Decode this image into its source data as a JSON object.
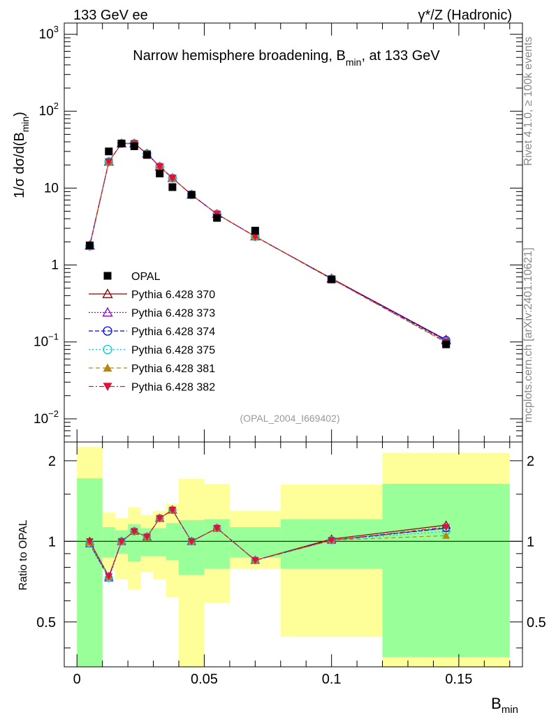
{
  "header": {
    "left": "133 GeV ee",
    "right": "γ*/Z (Hadronic)"
  },
  "side_labels": {
    "rivet": "Rivet 4.1.0, ≥ 100k events",
    "mcplots": "mcplots.cern.ch [arXiv:2401.10621]"
  },
  "colors": {
    "opal": "#000000",
    "s370": "#8b0000",
    "s373": "#9400d3",
    "s374": "#0000ff",
    "s375": "#00ced1",
    "s381": "#b8860b",
    "s382": "#dc143c",
    "band_inner": "#99ff99",
    "band_outer": "#ffff99"
  },
  "chart_data": [
    {
      "type": "line",
      "panel": "main",
      "title": "Narrow hemisphere broadening, B",
      "title_sub": "min",
      "title_suffix": ", at 133 GeV",
      "ylabel_main": "1/σ  dσ/d(B",
      "ylabel_sub": "min",
      "ylabel_close": ")",
      "yscale": "log",
      "ylim": [
        0.005,
        1400
      ],
      "xlim": [
        -0.005,
        0.175
      ],
      "yticks": [
        {
          "v": 0.01,
          "base": "10",
          "exp": "−2"
        },
        {
          "v": 0.1,
          "base": "10",
          "exp": "−1"
        },
        {
          "v": 1,
          "base": "1",
          "exp": ""
        },
        {
          "v": 10,
          "base": "10",
          "exp": ""
        },
        {
          "v": 100,
          "base": "10",
          "exp": "2"
        },
        {
          "v": 1000,
          "base": "10",
          "exp": "3"
        }
      ],
      "annotation": "(OPAL_2004_I669402)",
      "legend_position": "middle-left",
      "x": [
        0.005,
        0.0125,
        0.0175,
        0.0225,
        0.0275,
        0.0325,
        0.0375,
        0.045,
        0.055,
        0.07,
        0.1,
        0.145
      ],
      "opal": {
        "name": "OPAL",
        "values": [
          1.8,
          30,
          38,
          35,
          27,
          15.5,
          10.3,
          8.2,
          4.1,
          2.8,
          0.65,
          0.093
        ]
      },
      "series": [
        {
          "key": "s370",
          "name": "Pythia 6.428 370",
          "marker": "triangle-open",
          "dash": "",
          "values": [
            1.8,
            22,
            38,
            38,
            28,
            19,
            13.5,
            8.2,
            4.6,
            2.35,
            0.67,
            0.107
          ]
        },
        {
          "key": "s373",
          "name": "Pythia 6.428 373",
          "marker": "triangle-open",
          "dash": "2,2",
          "values": [
            1.77,
            22,
            38,
            38,
            28,
            19,
            13.5,
            8.2,
            4.6,
            2.35,
            0.66,
            0.104
          ]
        },
        {
          "key": "s374",
          "name": "Pythia 6.428 374",
          "marker": "circle-open",
          "dash": "6,3",
          "values": [
            1.76,
            22,
            38,
            38,
            28,
            19,
            13.5,
            8.2,
            4.6,
            2.35,
            0.66,
            0.105
          ]
        },
        {
          "key": "s375",
          "name": "Pythia 6.428 375",
          "marker": "circle-open",
          "dash": "2,3",
          "values": [
            1.77,
            22,
            38,
            38,
            28,
            19,
            13.5,
            8.2,
            4.6,
            2.35,
            0.66,
            0.102
          ]
        },
        {
          "key": "s381",
          "name": "Pythia 6.428 381",
          "marker": "triangle-filled",
          "dash": "6,4",
          "values": [
            1.78,
            22,
            38,
            38,
            28,
            19,
            13.5,
            8.2,
            4.6,
            2.35,
            0.66,
            0.098
          ]
        },
        {
          "key": "s382",
          "name": "Pythia 6.428 382",
          "marker": "triangle-down-filled",
          "dash": "7,3,2,3",
          "values": [
            1.8,
            22,
            38,
            38,
            28,
            19,
            13.5,
            8.2,
            4.6,
            2.35,
            0.66,
            0.1
          ]
        }
      ]
    },
    {
      "type": "line",
      "panel": "ratio",
      "ylabel": "Ratio to OPAL",
      "yscale": "log",
      "ylim": [
        0.34,
        2.35
      ],
      "xlim": [
        -0.005,
        0.175
      ],
      "xlabel": "B",
      "xlabel_sub": "min",
      "yticks": [
        {
          "v": 0.5,
          "label": "0.5"
        },
        {
          "v": 1,
          "label": "1"
        },
        {
          "v": 2,
          "label": "2"
        }
      ],
      "xticks": [
        {
          "v": 0,
          "label": "0"
        },
        {
          "v": 0.05,
          "label": "0.05"
        },
        {
          "v": 0.1,
          "label": "0.1"
        },
        {
          "v": 0.15,
          "label": "0.15"
        }
      ],
      "bins": [
        [
          0,
          0.01
        ],
        [
          0.01,
          0.015
        ],
        [
          0.015,
          0.02
        ],
        [
          0.02,
          0.025
        ],
        [
          0.025,
          0.03
        ],
        [
          0.03,
          0.035
        ],
        [
          0.035,
          0.04
        ],
        [
          0.04,
          0.05
        ],
        [
          0.05,
          0.06
        ],
        [
          0.06,
          0.08
        ],
        [
          0.08,
          0.12
        ],
        [
          0.12,
          0.17
        ]
      ],
      "band_inner": [
        [
          0.34,
          1.72
        ],
        [
          0.87,
          1.13
        ],
        [
          0.9,
          1.1
        ],
        [
          0.84,
          1.16
        ],
        [
          0.88,
          1.12
        ],
        [
          0.88,
          1.12
        ],
        [
          0.85,
          1.17
        ],
        [
          0.75,
          1.2
        ],
        [
          0.79,
          1.21
        ],
        [
          0.87,
          1.13
        ],
        [
          0.79,
          1.21
        ],
        [
          0.37,
          1.64
        ]
      ],
      "band_outer": [
        [
          0.34,
          2.25
        ],
        [
          0.78,
          1.28
        ],
        [
          0.72,
          1.22
        ],
        [
          0.66,
          1.34
        ],
        [
          0.77,
          1.25
        ],
        [
          0.72,
          1.3
        ],
        [
          0.62,
          1.38
        ],
        [
          0.34,
          1.71
        ],
        [
          0.59,
          1.64
        ],
        [
          0.79,
          1.3
        ],
        [
          0.44,
          1.63
        ],
        [
          0.34,
          2.14
        ]
      ],
      "x": [
        0.005,
        0.0125,
        0.0175,
        0.0225,
        0.0275,
        0.0325,
        0.0375,
        0.045,
        0.055,
        0.07,
        0.1,
        0.145
      ],
      "series": [
        {
          "key": "s370",
          "values": [
            1.0,
            0.74,
            1.0,
            1.09,
            1.04,
            1.22,
            1.31,
            1.0,
            1.12,
            0.85,
            1.02,
            1.15
          ]
        },
        {
          "key": "s373",
          "values": [
            0.98,
            0.73,
            1.0,
            1.09,
            1.04,
            1.22,
            1.31,
            1.0,
            1.12,
            0.85,
            1.01,
            1.12
          ]
        },
        {
          "key": "s374",
          "values": [
            0.98,
            0.73,
            1.0,
            1.09,
            1.04,
            1.22,
            1.31,
            1.0,
            1.12,
            0.85,
            1.01,
            1.12
          ]
        },
        {
          "key": "s375",
          "values": [
            0.98,
            0.73,
            1.0,
            1.09,
            1.04,
            1.22,
            1.31,
            1.0,
            1.12,
            0.85,
            1.01,
            1.09
          ]
        },
        {
          "key": "s381",
          "values": [
            0.99,
            0.74,
            1.0,
            1.09,
            1.04,
            1.22,
            1.31,
            1.0,
            1.12,
            0.85,
            1.01,
            1.05
          ]
        },
        {
          "key": "s382",
          "values": [
            1.0,
            0.74,
            1.0,
            1.09,
            1.04,
            1.22,
            1.31,
            1.0,
            1.12,
            0.85,
            1.01,
            1.13
          ]
        }
      ]
    }
  ]
}
